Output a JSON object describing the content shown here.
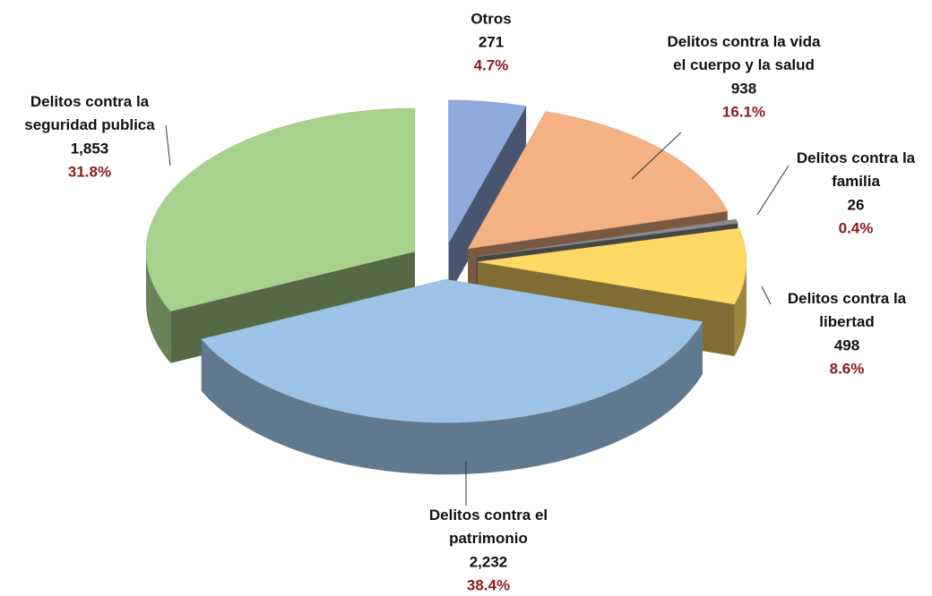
{
  "chart_data": {
    "type": "pie3d",
    "categories": [
      "Otros",
      "Delitos contra la vida\nel cuerpo y la salud",
      "Delitos contra la\nfamilia",
      "Delitos contra la\nlibertad",
      "Delitos contra el\npatrimonio",
      "Delitos contra la\nseguridad publica"
    ],
    "values": [
      271,
      938,
      26,
      498,
      2232,
      1853
    ],
    "value_labels": [
      "271",
      "938",
      "26",
      "498",
      "2,232",
      "1,853"
    ],
    "percent_labels": [
      "4.7%",
      "16.1%",
      "0.4%",
      "8.6%",
      "38.4%",
      "31.8%"
    ],
    "colors": [
      "#8faadc",
      "#f4b183",
      "#8c8c8c",
      "#ffd966",
      "#9dc3e6",
      "#a9d18e"
    ]
  }
}
